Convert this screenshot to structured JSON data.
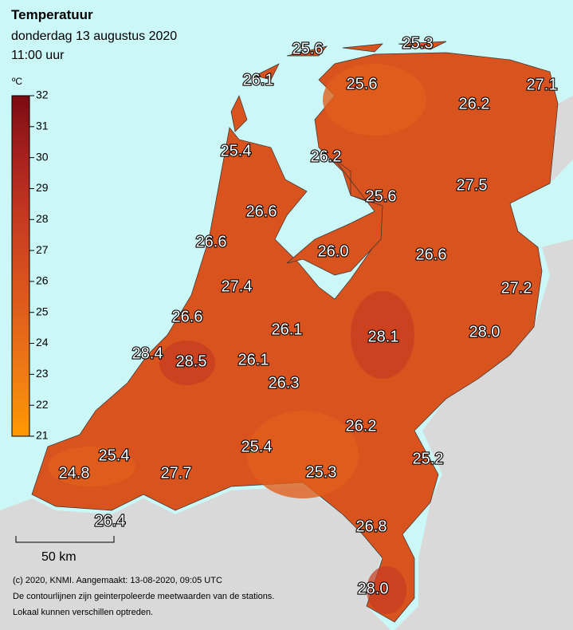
{
  "header": {
    "title": "Temperatuur",
    "date": "donderdag 13 augustus 2020",
    "time": "11:00 uur"
  },
  "legend": {
    "unit": "ºC",
    "ticks": [
      21,
      22,
      23,
      24,
      25,
      26,
      27,
      28,
      29,
      30,
      31,
      32
    ],
    "colors": [
      "#ff9900",
      "#f68a0d",
      "#ee7c14",
      "#e76d18",
      "#e05f1b",
      "#d9531e",
      "#d0461f",
      "#c63a20",
      "#b72e20",
      "#a6221e",
      "#92171a",
      "#7a0a12"
    ]
  },
  "stations": [
    {
      "value": 25.6
    },
    {
      "value": 25.3
    },
    {
      "value": 26.1
    },
    {
      "value": 25.6
    },
    {
      "value": 27.1
    },
    {
      "value": 26.2
    },
    {
      "value": 25.4
    },
    {
      "value": 26.2
    },
    {
      "value": 27.5
    },
    {
      "value": 25.6
    },
    {
      "value": 26.6
    },
    {
      "value": 26.6
    },
    {
      "value": 26,
      "label": "26.0"
    },
    {
      "value": 26.6
    },
    {
      "value": 27.4
    },
    {
      "value": 27.2
    },
    {
      "value": 26.6
    },
    {
      "value": 26.1
    },
    {
      "value": 28.1
    },
    {
      "value": 28,
      "label": "28.0"
    },
    {
      "value": 28.4
    },
    {
      "value": 28.5
    },
    {
      "value": 26.1
    },
    {
      "value": 26.3
    },
    {
      "value": 26.2
    },
    {
      "value": 25.4
    },
    {
      "value": 25.2
    },
    {
      "value": 25.4
    },
    {
      "value": 24.8
    },
    {
      "value": 27.7
    },
    {
      "value": 25.3
    },
    {
      "value": 26.4
    },
    {
      "value": 26.8
    },
    {
      "value": 28,
      "label": "28.0"
    }
  ],
  "scale_bar": "50 km",
  "footer": [
    "(c) 2020, KNMI. Aangemaakt: 13-08-2020, 09:05 UTC",
    "De contourlijnen zijn geinterpoleerde meetwaarden van de stations.",
    "Lokaal kunnen verschillen optreden."
  ]
}
